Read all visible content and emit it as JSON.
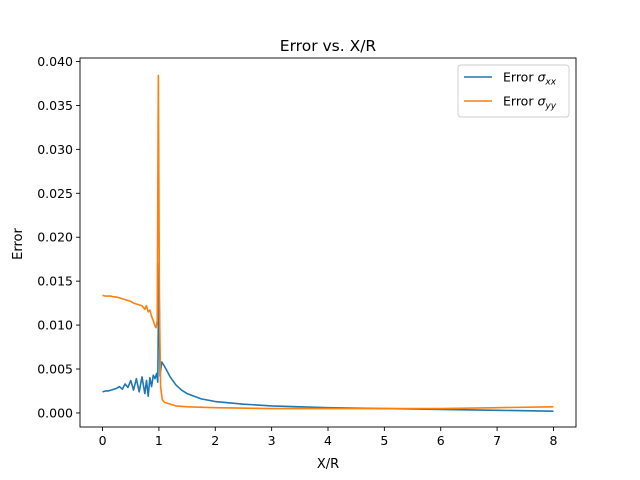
{
  "chart_data": {
    "type": "line",
    "title": "Error vs. X/R",
    "xlabel": "X/R",
    "ylabel": "Error",
    "xlim": [
      -0.4,
      8.4
    ],
    "ylim": [
      -0.0016,
      0.0404
    ],
    "x_ticks": [
      0,
      1,
      2,
      3,
      4,
      5,
      6,
      7,
      8
    ],
    "x_tick_labels": [
      "0",
      "1",
      "2",
      "3",
      "4",
      "5",
      "6",
      "7",
      "8"
    ],
    "y_ticks": [
      0.0,
      0.005,
      0.01,
      0.015,
      0.02,
      0.025,
      0.03,
      0.035,
      0.04
    ],
    "y_tick_labels": [
      "0.000",
      "0.005",
      "0.010",
      "0.015",
      "0.020",
      "0.025",
      "0.030",
      "0.035",
      "0.040"
    ],
    "grid": false,
    "legend_position": "top-right",
    "series": [
      {
        "name": "Error σxx",
        "legend_base": "Error ",
        "legend_symbol": "σ",
        "legend_sub": "xx",
        "color": "#1f77b4",
        "points": [
          [
            0.0,
            0.0024
          ],
          [
            0.05,
            0.0025
          ],
          [
            0.1,
            0.0025
          ],
          [
            0.15,
            0.0026
          ],
          [
            0.2,
            0.0027
          ],
          [
            0.25,
            0.0028
          ],
          [
            0.3,
            0.003
          ],
          [
            0.35,
            0.0027
          ],
          [
            0.4,
            0.0033
          ],
          [
            0.45,
            0.0029
          ],
          [
            0.5,
            0.0037
          ],
          [
            0.55,
            0.0026
          ],
          [
            0.6,
            0.0039
          ],
          [
            0.65,
            0.0024
          ],
          [
            0.7,
            0.0041
          ],
          [
            0.75,
            0.0022
          ],
          [
            0.78,
            0.0037
          ],
          [
            0.81,
            0.0019
          ],
          [
            0.84,
            0.004
          ],
          [
            0.87,
            0.003
          ],
          [
            0.9,
            0.0043
          ],
          [
            0.93,
            0.0039
          ],
          [
            0.96,
            0.0045
          ],
          [
            0.98,
            0.0035
          ],
          [
            1.0,
            0.017
          ],
          [
            1.02,
            0.0042
          ],
          [
            1.05,
            0.0058
          ],
          [
            1.1,
            0.0053
          ],
          [
            1.2,
            0.0041
          ],
          [
            1.3,
            0.0032
          ],
          [
            1.4,
            0.0026
          ],
          [
            1.5,
            0.0022
          ],
          [
            1.75,
            0.0016
          ],
          [
            2.0,
            0.0013
          ],
          [
            2.5,
            0.001
          ],
          [
            3.0,
            0.0008
          ],
          [
            4.0,
            0.0006
          ],
          [
            5.0,
            0.0005
          ],
          [
            6.0,
            0.0004
          ],
          [
            7.0,
            0.0003
          ],
          [
            8.0,
            0.0002
          ]
        ]
      },
      {
        "name": "Error σyy",
        "legend_base": "Error ",
        "legend_symbol": "σ",
        "legend_sub": "yy",
        "color": "#ff7f0e",
        "points": [
          [
            0.0,
            0.0134
          ],
          [
            0.05,
            0.0133
          ],
          [
            0.1,
            0.0133
          ],
          [
            0.15,
            0.0133
          ],
          [
            0.2,
            0.0132
          ],
          [
            0.25,
            0.0132
          ],
          [
            0.3,
            0.0131
          ],
          [
            0.35,
            0.013
          ],
          [
            0.4,
            0.0129
          ],
          [
            0.45,
            0.0128
          ],
          [
            0.5,
            0.0127
          ],
          [
            0.55,
            0.0125
          ],
          [
            0.6,
            0.0124
          ],
          [
            0.65,
            0.0123
          ],
          [
            0.7,
            0.0122
          ],
          [
            0.75,
            0.0118
          ],
          [
            0.78,
            0.0122
          ],
          [
            0.81,
            0.0115
          ],
          [
            0.84,
            0.0117
          ],
          [
            0.87,
            0.011
          ],
          [
            0.9,
            0.0105
          ],
          [
            0.93,
            0.0099
          ],
          [
            0.95,
            0.0097
          ],
          [
            0.97,
            0.0105
          ],
          [
            0.99,
            0.0384
          ],
          [
            1.01,
            0.012
          ],
          [
            1.03,
            0.003
          ],
          [
            1.06,
            0.0015
          ],
          [
            1.1,
            0.0012
          ],
          [
            1.2,
            0.001
          ],
          [
            1.3,
            0.0008
          ],
          [
            1.5,
            0.0007
          ],
          [
            2.0,
            0.0006
          ],
          [
            3.0,
            0.0005
          ],
          [
            4.0,
            0.0005
          ],
          [
            5.0,
            0.0005
          ],
          [
            6.0,
            0.0005
          ],
          [
            7.0,
            0.0006
          ],
          [
            8.0,
            0.0007
          ]
        ]
      }
    ]
  }
}
